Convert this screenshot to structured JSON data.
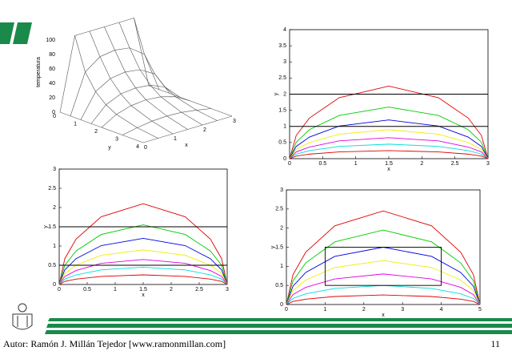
{
  "footer": {
    "author": "Autor: Ramón J. Millán Tejedor [www.ramonmillan.com]",
    "page": "11"
  },
  "chart_data": [
    {
      "type": "surface",
      "xlabel": "x",
      "ylabel": "y",
      "zlabel": "temperatura",
      "x": [
        0,
        0.5,
        1,
        1.5,
        2,
        2.5,
        3
      ],
      "y": [
        0,
        0.5,
        1,
        1.5,
        2,
        3,
        4
      ],
      "z": [
        [
          0,
          100,
          100,
          100,
          100,
          100,
          0
        ],
        [
          0,
          55,
          70,
          73,
          70,
          55,
          0
        ],
        [
          0,
          33,
          45,
          48,
          45,
          33,
          0
        ],
        [
          0,
          20,
          29,
          31,
          29,
          20,
          0
        ],
        [
          0,
          12,
          18,
          20,
          18,
          12,
          0
        ],
        [
          0,
          4,
          7,
          8,
          7,
          4,
          0
        ],
        [
          0,
          0,
          0,
          0,
          0,
          0,
          0
        ]
      ],
      "xticks": [
        0,
        1,
        2,
        3
      ],
      "yticks": [
        0,
        1,
        2,
        3,
        4
      ],
      "zticks": [
        0,
        20,
        40,
        60,
        80,
        100
      ]
    },
    {
      "type": "line",
      "xlabel": "x",
      "ylabel": "y",
      "xlim": [
        0,
        3
      ],
      "ylim": [
        0,
        4
      ],
      "xticks": [
        0,
        0.5,
        1,
        1.5,
        2,
        2.5,
        3
      ],
      "yticks": [
        0,
        0.5,
        1,
        1.5,
        2,
        2.5,
        3,
        3.5,
        4
      ],
      "x": [
        0,
        0.1,
        0.3,
        0.75,
        1.5,
        2.25,
        2.7,
        2.9,
        3
      ],
      "series": [
        {
          "color": "#e00000",
          "values": [
            0,
            0.72,
            1.26,
            1.89,
            2.25,
            1.89,
            1.26,
            0.72,
            0
          ]
        },
        {
          "color": "#00cc00",
          "values": [
            0,
            0.51,
            0.9,
            1.34,
            1.6,
            1.34,
            0.9,
            0.51,
            0
          ]
        },
        {
          "color": "#0000e0",
          "values": [
            0,
            0.38,
            0.67,
            1.01,
            1.2,
            1.01,
            0.67,
            0.38,
            0
          ]
        },
        {
          "color": "#eeee00",
          "values": [
            0,
            0.29,
            0.5,
            0.76,
            0.9,
            0.76,
            0.5,
            0.29,
            0
          ]
        },
        {
          "color": "#e000e0",
          "values": [
            0,
            0.21,
            0.36,
            0.55,
            0.65,
            0.55,
            0.36,
            0.21,
            0
          ]
        },
        {
          "color": "#00dddd",
          "values": [
            0,
            0.14,
            0.25,
            0.38,
            0.45,
            0.38,
            0.25,
            0.14,
            0
          ]
        },
        {
          "color": "#e00000",
          "values": [
            0,
            0.08,
            0.14,
            0.21,
            0.25,
            0.21,
            0.14,
            0.08,
            0
          ]
        }
      ],
      "hlines": [
        1,
        2
      ]
    },
    {
      "type": "line",
      "xlabel": "x",
      "ylabel": "y",
      "xlim": [
        0,
        3
      ],
      "ylim": [
        0,
        3
      ],
      "xticks": [
        0,
        0.5,
        1,
        1.5,
        2,
        2.5,
        3
      ],
      "yticks": [
        0,
        0.5,
        1,
        1.5,
        2,
        2.5,
        3
      ],
      "x": [
        0,
        0.1,
        0.3,
        0.75,
        1.5,
        2.25,
        2.7,
        2.9,
        3
      ],
      "series": [
        {
          "color": "#e00000",
          "values": [
            0,
            0.67,
            1.18,
            1.76,
            2.1,
            1.76,
            1.18,
            0.67,
            0
          ]
        },
        {
          "color": "#00cc00",
          "values": [
            0,
            0.5,
            0.87,
            1.3,
            1.55,
            1.3,
            0.87,
            0.5,
            0
          ]
        },
        {
          "color": "#0000e0",
          "values": [
            0,
            0.38,
            0.67,
            1.01,
            1.2,
            1.01,
            0.67,
            0.38,
            0
          ]
        },
        {
          "color": "#eeee00",
          "values": [
            0,
            0.29,
            0.5,
            0.76,
            0.9,
            0.76,
            0.5,
            0.29,
            0
          ]
        },
        {
          "color": "#e000e0",
          "values": [
            0,
            0.21,
            0.36,
            0.55,
            0.65,
            0.55,
            0.36,
            0.21,
            0
          ]
        },
        {
          "color": "#00dddd",
          "values": [
            0,
            0.14,
            0.25,
            0.38,
            0.45,
            0.38,
            0.25,
            0.14,
            0
          ]
        },
        {
          "color": "#e00000",
          "values": [
            0,
            0.08,
            0.14,
            0.21,
            0.25,
            0.21,
            0.14,
            0.08,
            0
          ]
        }
      ],
      "hlines": [
        0.5,
        1.5
      ]
    },
    {
      "type": "line",
      "xlabel": "x",
      "ylabel": "y",
      "xlim": [
        0,
        5
      ],
      "ylim": [
        0,
        3
      ],
      "xticks": [
        0,
        1,
        2,
        3,
        4,
        5
      ],
      "yticks": [
        0,
        0.5,
        1,
        1.5,
        2,
        2.5,
        3
      ],
      "x": [
        0,
        0.17,
        0.5,
        1.25,
        2.5,
        3.75,
        4.5,
        4.83,
        5
      ],
      "series": [
        {
          "color": "#e00000",
          "values": [
            0,
            0.78,
            1.37,
            2.06,
            2.45,
            2.06,
            1.37,
            0.78,
            0
          ]
        },
        {
          "color": "#00cc00",
          "values": [
            0,
            0.62,
            1.09,
            1.64,
            1.95,
            1.64,
            1.09,
            0.62,
            0
          ]
        },
        {
          "color": "#0000e0",
          "values": [
            0,
            0.48,
            0.84,
            1.26,
            1.5,
            1.26,
            0.84,
            0.48,
            0
          ]
        },
        {
          "color": "#eeee00",
          "values": [
            0,
            0.37,
            0.64,
            0.97,
            1.15,
            0.97,
            0.64,
            0.37,
            0
          ]
        },
        {
          "color": "#e000e0",
          "values": [
            0,
            0.26,
            0.45,
            0.67,
            0.8,
            0.67,
            0.45,
            0.26,
            0
          ]
        },
        {
          "color": "#00dddd",
          "values": [
            0,
            0.16,
            0.28,
            0.42,
            0.5,
            0.42,
            0.28,
            0.16,
            0
          ]
        },
        {
          "color": "#e00000",
          "values": [
            0,
            0.08,
            0.14,
            0.21,
            0.25,
            0.21,
            0.14,
            0.08,
            0
          ]
        }
      ],
      "rect": {
        "x": [
          1,
          4
        ],
        "y": [
          0.5,
          1.5
        ]
      }
    }
  ]
}
